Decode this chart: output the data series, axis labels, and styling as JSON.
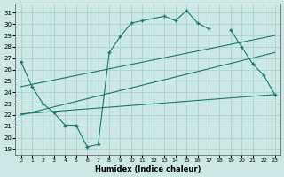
{
  "xlabel": "Humidex (Indice chaleur)",
  "bg_color": "#cce8e4",
  "grid_color": "#aad4cc",
  "line_color": "#1a7a6a",
  "xlim": [
    -0.5,
    23.5
  ],
  "ylim": [
    18.5,
    31.8
  ],
  "yticks": [
    19,
    20,
    21,
    22,
    23,
    24,
    25,
    26,
    27,
    28,
    29,
    30,
    31
  ],
  "xticks": [
    0,
    1,
    2,
    3,
    4,
    5,
    6,
    7,
    8,
    9,
    10,
    11,
    12,
    13,
    14,
    15,
    16,
    17,
    18,
    19,
    20,
    21,
    22,
    23
  ],
  "series1_x": [
    0,
    1,
    2,
    3,
    4,
    5,
    6,
    7,
    8,
    9,
    10,
    11,
    13,
    14,
    15,
    16,
    17
  ],
  "series1_y": [
    26.7,
    24.5,
    23.0,
    22.2,
    21.1,
    21.1,
    19.2,
    19.4,
    27.5,
    28.9,
    30.1,
    30.3,
    30.7,
    30.3,
    31.2,
    30.1,
    29.6
  ],
  "series2_x": [
    19,
    20,
    21,
    22,
    23
  ],
  "series2_y": [
    29.5,
    28.0,
    26.5,
    25.5,
    23.8
  ],
  "series3_x": [
    0,
    23
  ],
  "series3_y": [
    24.5,
    29.0
  ],
  "series4_x": [
    0,
    23
  ],
  "series4_y": [
    22.0,
    27.5
  ],
  "series5_x": [
    0,
    23
  ],
  "series5_y": [
    22.1,
    23.8
  ]
}
